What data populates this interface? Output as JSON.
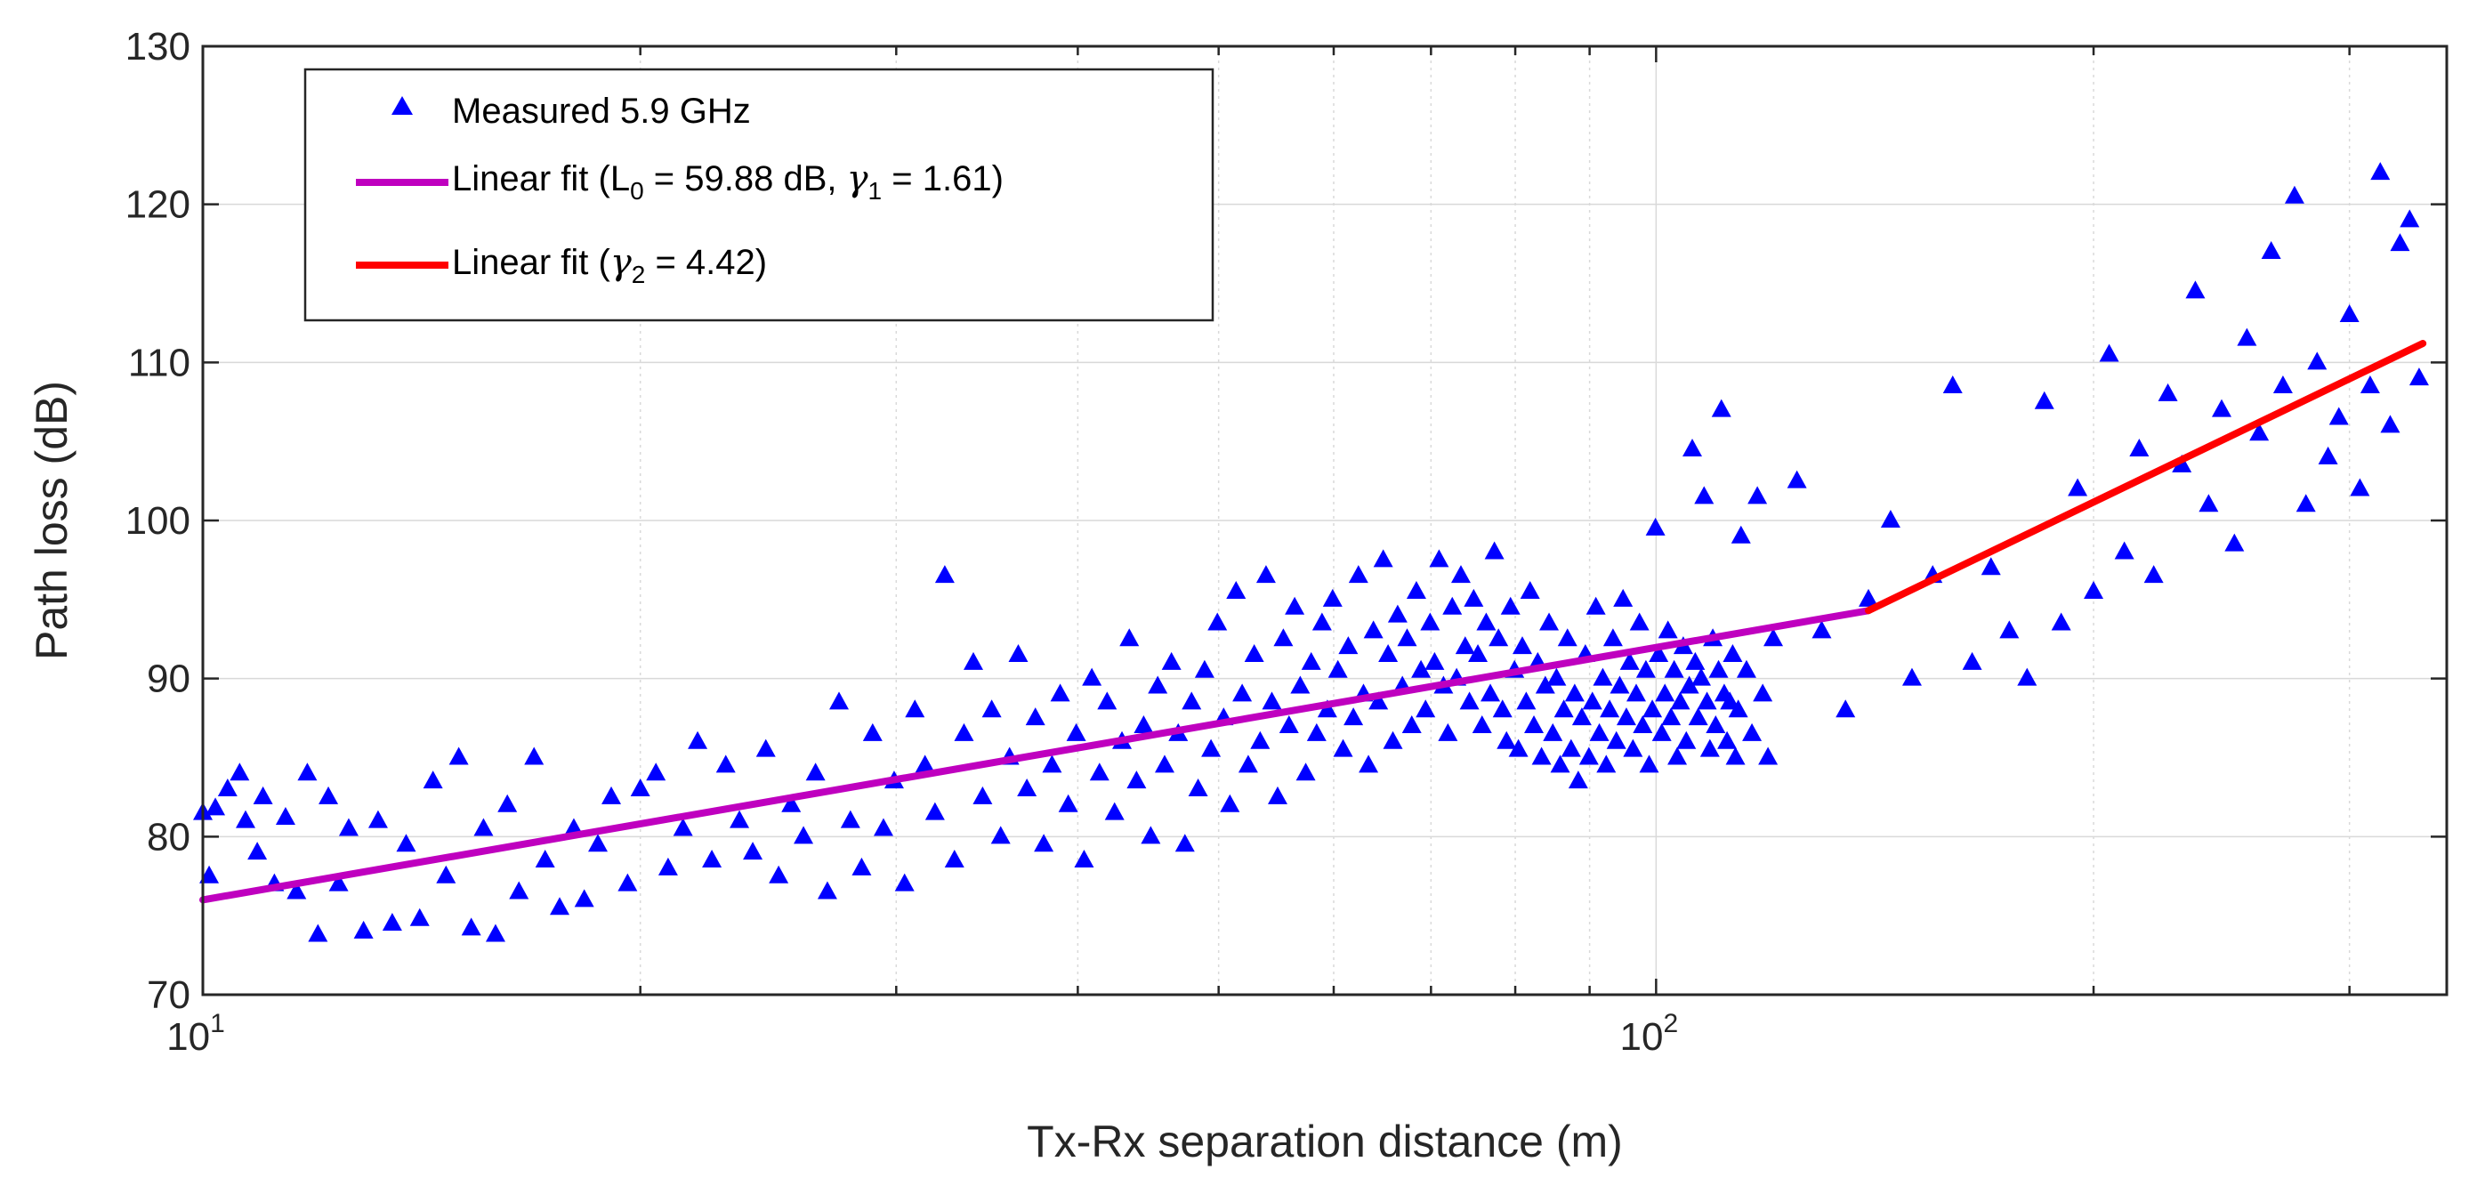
{
  "chart_data": {
    "type": "scatter",
    "title": "",
    "xlabel": "Tx-Rx separation distance (m)",
    "ylabel": "Path loss (dB)",
    "xscale": "log",
    "xlim": [
      10,
      350
    ],
    "ylim": [
      70,
      130
    ],
    "grid": true,
    "legend_position": "top-left",
    "x_ticks": [
      {
        "value": 10,
        "base": "10",
        "exp": "1"
      },
      {
        "value": 100,
        "base": "10",
        "exp": "2"
      }
    ],
    "y_ticks": [
      "70",
      "80",
      "90",
      "100",
      "110",
      "120",
      "130"
    ],
    "colors": {
      "measured": "#0000ff",
      "fit1": "#bf00bf",
      "fit2": "#ff0000",
      "grid": "#d9d9d9",
      "axis": "#262626"
    },
    "legend": {
      "measured": {
        "text": "Measured 5.9 GHz"
      },
      "fit1": {
        "pre": "Linear fit (L",
        "sub1": "0",
        "mid": " = 59.88 dB, ",
        "greek": "γ",
        "sub2": "1",
        "post": " = 1.61)"
      },
      "fit2": {
        "pre": "Linear fit (",
        "greek": "γ",
        "sub": "2",
        "post": " = 4.42)"
      }
    },
    "series": [
      {
        "name": "Measured 5.9 GHz",
        "marker": "triangle",
        "points": [
          [
            10.0,
            81.5
          ],
          [
            10.1,
            77.5
          ],
          [
            10.2,
            81.8
          ],
          [
            10.4,
            83.0
          ],
          [
            10.6,
            84.0
          ],
          [
            10.7,
            81.0
          ],
          [
            10.9,
            79.0
          ],
          [
            11.0,
            82.5
          ],
          [
            11.2,
            77.0
          ],
          [
            11.4,
            81.2
          ],
          [
            11.6,
            76.5
          ],
          [
            11.8,
            84.0
          ],
          [
            12.0,
            73.8
          ],
          [
            12.2,
            82.5
          ],
          [
            12.4,
            77.0
          ],
          [
            12.6,
            80.5
          ],
          [
            12.9,
            74.0
          ],
          [
            13.2,
            81.0
          ],
          [
            13.5,
            74.5
          ],
          [
            13.8,
            79.5
          ],
          [
            14.1,
            74.8
          ],
          [
            14.4,
            83.5
          ],
          [
            14.7,
            77.5
          ],
          [
            15.0,
            85.0
          ],
          [
            15.3,
            74.2
          ],
          [
            15.6,
            80.5
          ],
          [
            15.9,
            73.8
          ],
          [
            16.2,
            82.0
          ],
          [
            16.5,
            76.5
          ],
          [
            16.9,
            85.0
          ],
          [
            17.2,
            78.5
          ],
          [
            17.6,
            75.5
          ],
          [
            18.0,
            80.5
          ],
          [
            18.3,
            76.0
          ],
          [
            18.7,
            79.5
          ],
          [
            19.1,
            82.5
          ],
          [
            19.6,
            77.0
          ],
          [
            20.0,
            83.0
          ],
          [
            20.5,
            84.0
          ],
          [
            20.9,
            78.0
          ],
          [
            21.4,
            80.5
          ],
          [
            21.9,
            86.0
          ],
          [
            22.4,
            78.5
          ],
          [
            22.9,
            84.5
          ],
          [
            23.4,
            81.0
          ],
          [
            23.9,
            79.0
          ],
          [
            24.4,
            85.5
          ],
          [
            24.9,
            77.5
          ],
          [
            25.4,
            82.0
          ],
          [
            25.9,
            80.0
          ],
          [
            26.4,
            84.0
          ],
          [
            26.9,
            76.5
          ],
          [
            27.4,
            88.5
          ],
          [
            27.9,
            81.0
          ],
          [
            28.4,
            78.0
          ],
          [
            28.9,
            86.5
          ],
          [
            29.4,
            80.5
          ],
          [
            29.9,
            83.5
          ],
          [
            30.4,
            77.0
          ],
          [
            30.9,
            88.0
          ],
          [
            31.4,
            84.5
          ],
          [
            31.9,
            81.5
          ],
          [
            32.4,
            96.5
          ],
          [
            32.9,
            78.5
          ],
          [
            33.4,
            86.5
          ],
          [
            33.9,
            91.0
          ],
          [
            34.4,
            82.5
          ],
          [
            34.9,
            88.0
          ],
          [
            35.4,
            80.0
          ],
          [
            35.9,
            85.0
          ],
          [
            36.4,
            91.5
          ],
          [
            36.9,
            83.0
          ],
          [
            37.4,
            87.5
          ],
          [
            37.9,
            79.5
          ],
          [
            38.4,
            84.5
          ],
          [
            38.9,
            89.0
          ],
          [
            39.4,
            82.0
          ],
          [
            39.9,
            86.5
          ],
          [
            40.4,
            78.5
          ],
          [
            40.9,
            90.0
          ],
          [
            41.4,
            84.0
          ],
          [
            41.9,
            88.5
          ],
          [
            42.4,
            81.5
          ],
          [
            42.9,
            86.0
          ],
          [
            43.4,
            92.5
          ],
          [
            43.9,
            83.5
          ],
          [
            44.4,
            87.0
          ],
          [
            44.9,
            80.0
          ],
          [
            45.4,
            89.5
          ],
          [
            45.9,
            84.5
          ],
          [
            46.4,
            91.0
          ],
          [
            46.9,
            86.5
          ],
          [
            47.4,
            79.5
          ],
          [
            47.9,
            88.5
          ],
          [
            48.4,
            83.0
          ],
          [
            48.9,
            90.5
          ],
          [
            49.4,
            85.5
          ],
          [
            49.9,
            93.5
          ],
          [
            50.4,
            87.5
          ],
          [
            50.9,
            82.0
          ],
          [
            51.4,
            95.5
          ],
          [
            51.9,
            89.0
          ],
          [
            52.4,
            84.5
          ],
          [
            52.9,
            91.5
          ],
          [
            53.4,
            86.0
          ],
          [
            53.9,
            96.5
          ],
          [
            54.4,
            88.5
          ],
          [
            54.9,
            82.5
          ],
          [
            55.4,
            92.5
          ],
          [
            55.9,
            87.0
          ],
          [
            56.4,
            94.5
          ],
          [
            56.9,
            89.5
          ],
          [
            57.4,
            84.0
          ],
          [
            57.9,
            91.0
          ],
          [
            58.4,
            86.5
          ],
          [
            58.9,
            93.5
          ],
          [
            59.4,
            88.0
          ],
          [
            59.9,
            95.0
          ],
          [
            60.4,
            90.5
          ],
          [
            60.9,
            85.5
          ],
          [
            61.4,
            92.0
          ],
          [
            61.9,
            87.5
          ],
          [
            62.4,
            96.5
          ],
          [
            62.9,
            89.0
          ],
          [
            63.4,
            84.5
          ],
          [
            63.9,
            93.0
          ],
          [
            64.4,
            88.5
          ],
          [
            64.9,
            97.5
          ],
          [
            65.4,
            91.5
          ],
          [
            65.9,
            86.0
          ],
          [
            66.4,
            94.0
          ],
          [
            66.9,
            89.5
          ],
          [
            67.4,
            92.5
          ],
          [
            67.9,
            87.0
          ],
          [
            68.4,
            95.5
          ],
          [
            68.9,
            90.5
          ],
          [
            69.4,
            88.0
          ],
          [
            69.9,
            93.5
          ],
          [
            70.4,
            91.0
          ],
          [
            70.9,
            97.5
          ],
          [
            71.4,
            89.5
          ],
          [
            71.9,
            86.5
          ],
          [
            72.4,
            94.5
          ],
          [
            72.9,
            90.0
          ],
          [
            73.4,
            96.5
          ],
          [
            73.9,
            92.0
          ],
          [
            74.4,
            88.5
          ],
          [
            74.9,
            95.0
          ],
          [
            75.4,
            91.5
          ],
          [
            75.9,
            87.0
          ],
          [
            76.4,
            93.5
          ],
          [
            76.9,
            89.0
          ],
          [
            77.4,
            98.0
          ],
          [
            77.9,
            92.5
          ],
          [
            78.4,
            88.0
          ],
          [
            78.9,
            86.0
          ],
          [
            79.4,
            94.5
          ],
          [
            79.9,
            90.5
          ],
          [
            80.4,
            85.5
          ],
          [
            80.9,
            92.0
          ],
          [
            81.4,
            88.5
          ],
          [
            81.9,
            95.5
          ],
          [
            82.4,
            87.0
          ],
          [
            82.9,
            91.0
          ],
          [
            83.4,
            85.0
          ],
          [
            83.9,
            89.5
          ],
          [
            84.4,
            93.5
          ],
          [
            84.9,
            86.5
          ],
          [
            85.4,
            90.0
          ],
          [
            85.9,
            84.5
          ],
          [
            86.4,
            88.0
          ],
          [
            86.9,
            92.5
          ],
          [
            87.4,
            85.5
          ],
          [
            87.9,
            89.0
          ],
          [
            88.4,
            83.5
          ],
          [
            88.9,
            87.5
          ],
          [
            89.4,
            91.5
          ],
          [
            89.9,
            85.0
          ],
          [
            90.4,
            88.5
          ],
          [
            90.9,
            94.5
          ],
          [
            91.4,
            86.5
          ],
          [
            91.9,
            90.0
          ],
          [
            92.4,
            84.5
          ],
          [
            92.9,
            88.0
          ],
          [
            93.4,
            92.5
          ],
          [
            93.9,
            86.0
          ],
          [
            94.4,
            89.5
          ],
          [
            94.9,
            95.0
          ],
          [
            95.4,
            87.5
          ],
          [
            95.9,
            91.0
          ],
          [
            96.4,
            85.5
          ],
          [
            96.9,
            89.0
          ],
          [
            97.4,
            93.5
          ],
          [
            97.9,
            87.0
          ],
          [
            98.4,
            90.5
          ],
          [
            98.9,
            84.5
          ],
          [
            99.4,
            88.0
          ],
          [
            99.9,
            99.5
          ],
          [
            100.4,
            91.5
          ],
          [
            100.9,
            86.5
          ],
          [
            101.4,
            89.0
          ],
          [
            101.9,
            93.0
          ],
          [
            102.4,
            87.5
          ],
          [
            102.9,
            90.5
          ],
          [
            103.4,
            85.0
          ],
          [
            103.9,
            88.5
          ],
          [
            104.4,
            92.0
          ],
          [
            104.9,
            86.0
          ],
          [
            105.4,
            89.5
          ],
          [
            105.9,
            104.5
          ],
          [
            106.4,
            91.0
          ],
          [
            106.9,
            87.5
          ],
          [
            107.4,
            90.0
          ],
          [
            107.9,
            101.5
          ],
          [
            108.4,
            88.5
          ],
          [
            108.9,
            85.5
          ],
          [
            109.4,
            92.5
          ],
          [
            109.9,
            87.0
          ],
          [
            110.4,
            90.5
          ],
          [
            110.9,
            107.0
          ],
          [
            111.4,
            89.0
          ],
          [
            111.9,
            86.0
          ],
          [
            112.4,
            88.5
          ],
          [
            112.9,
            91.5
          ],
          [
            113.4,
            85.0
          ],
          [
            113.9,
            88.0
          ],
          [
            114.4,
            99.0
          ],
          [
            115.4,
            90.5
          ],
          [
            116.4,
            86.5
          ],
          [
            117.4,
            101.5
          ],
          [
            118.4,
            89.0
          ],
          [
            119.4,
            85.0
          ],
          [
            120.4,
            92.5
          ],
          [
            125.0,
            102.5
          ],
          [
            130.0,
            93.0
          ],
          [
            135.0,
            88.0
          ],
          [
            140.0,
            95.0
          ],
          [
            145.0,
            100.0
          ],
          [
            150.0,
            90.0
          ],
          [
            155.0,
            96.5
          ],
          [
            160.0,
            108.5
          ],
          [
            165.0,
            91.0
          ],
          [
            170.0,
            97.0
          ],
          [
            175.0,
            93.0
          ],
          [
            180.0,
            90.0
          ],
          [
            185.0,
            107.5
          ],
          [
            190.0,
            93.5
          ],
          [
            195.0,
            102.0
          ],
          [
            200.0,
            95.5
          ],
          [
            205.0,
            110.5
          ],
          [
            210.0,
            98.0
          ],
          [
            215.0,
            104.5
          ],
          [
            220.0,
            96.5
          ],
          [
            225.0,
            108.0
          ],
          [
            230.0,
            103.5
          ],
          [
            235.0,
            114.5
          ],
          [
            240.0,
            101.0
          ],
          [
            245.0,
            107.0
          ],
          [
            250.0,
            98.5
          ],
          [
            255.0,
            111.5
          ],
          [
            260.0,
            105.5
          ],
          [
            265.0,
            117.0
          ],
          [
            270.0,
            108.5
          ],
          [
            275.0,
            120.5
          ],
          [
            280.0,
            101.0
          ],
          [
            285.0,
            110.0
          ],
          [
            290.0,
            104.0
          ],
          [
            295.0,
            106.5
          ],
          [
            300.0,
            113.0
          ],
          [
            305.0,
            102.0
          ],
          [
            310.0,
            108.5
          ],
          [
            315.0,
            122.0
          ],
          [
            320.0,
            106.0
          ],
          [
            325.0,
            117.5
          ],
          [
            330.0,
            119.0
          ],
          [
            335.0,
            109.0
          ]
        ]
      },
      {
        "name": "Linear fit (L0 = 59.88 dB, γ1 = 1.61)",
        "type": "line",
        "points": [
          [
            10,
            76.0
          ],
          [
            140,
            94.3
          ]
        ]
      },
      {
        "name": "Linear fit (γ2 = 4.42)",
        "type": "line",
        "points": [
          [
            140,
            94.3
          ],
          [
            337,
            111.2
          ]
        ]
      }
    ]
  }
}
